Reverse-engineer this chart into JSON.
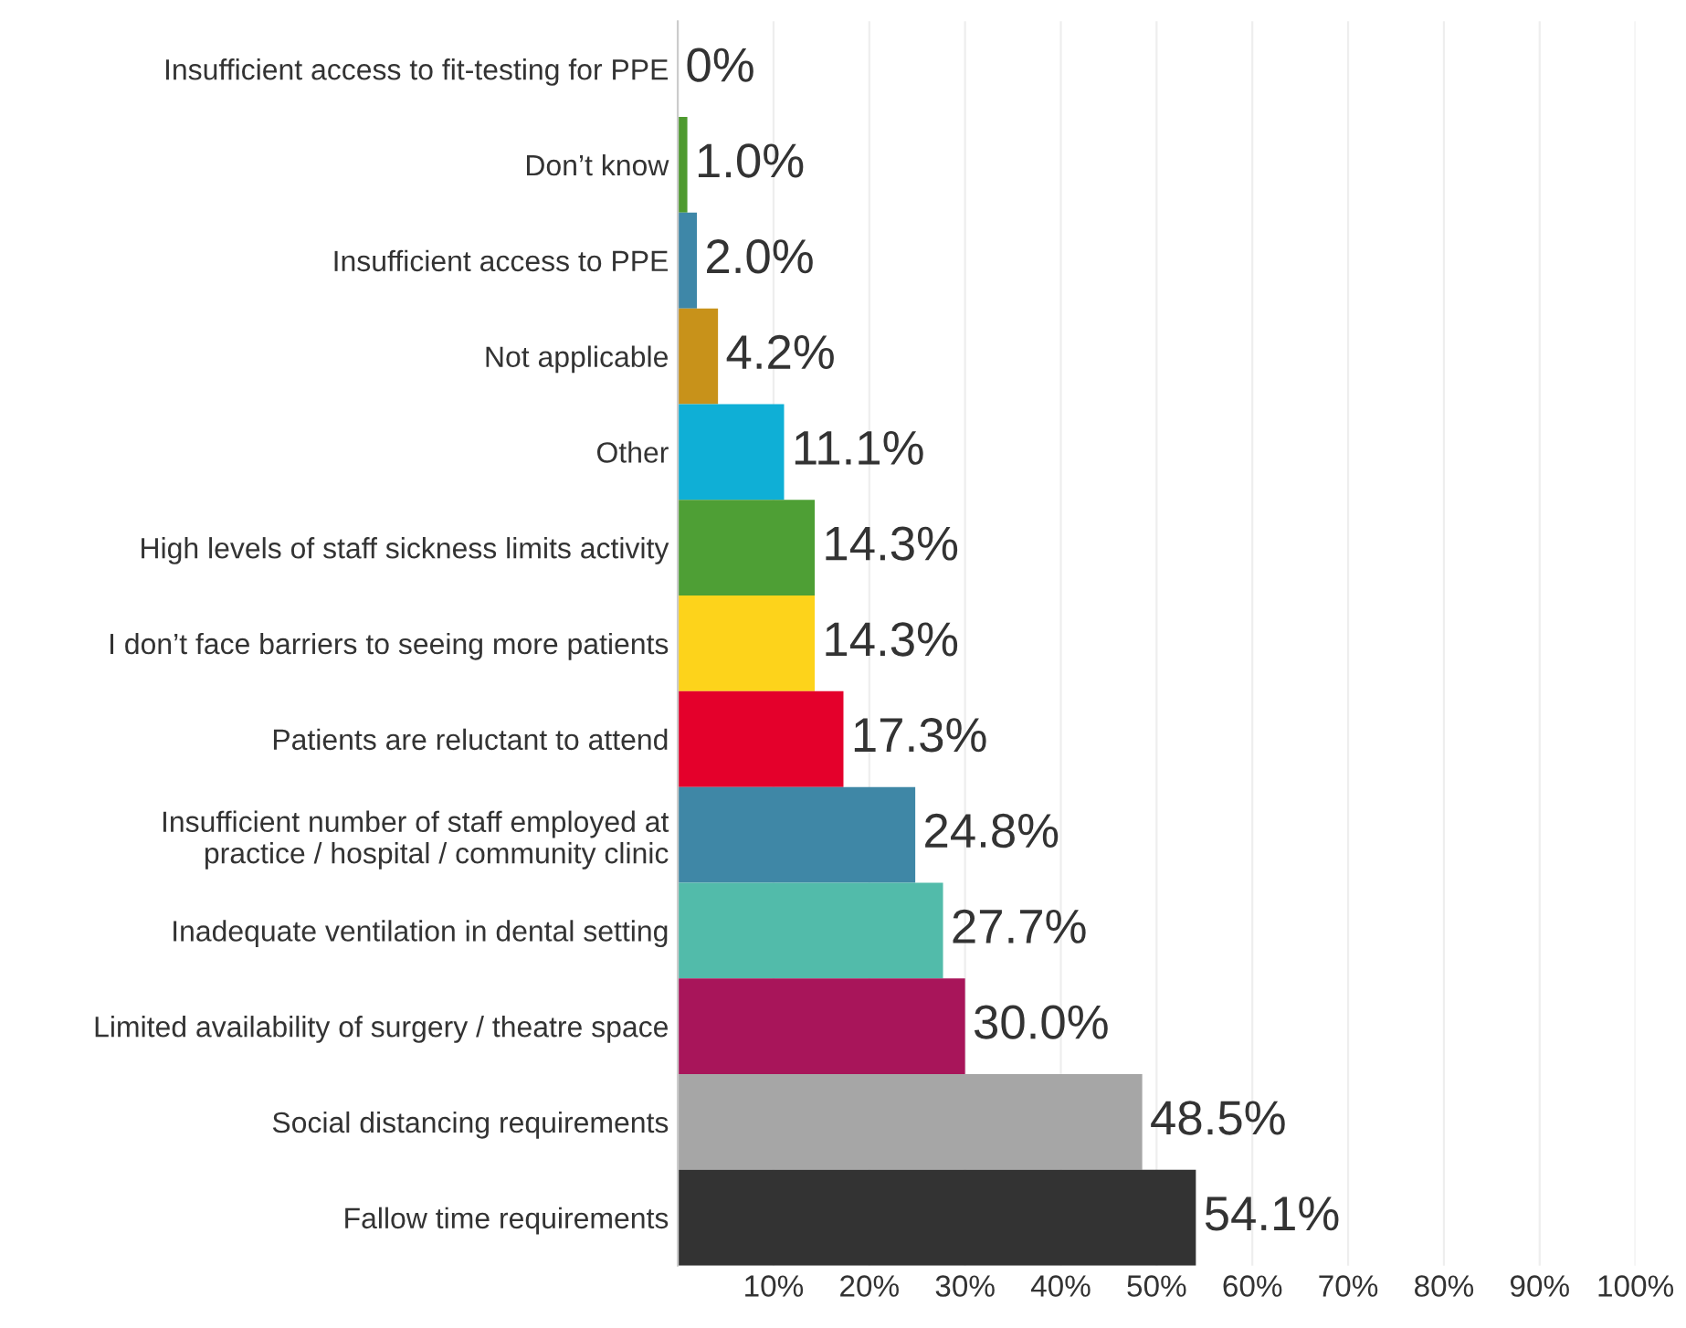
{
  "chart_data": {
    "type": "bar",
    "orientation": "horizontal",
    "categories": [
      "Insufficient access to fit-testing for PPE",
      "Don’t know",
      "Insufficient access to PPE",
      "Not applicable",
      "Other",
      "High levels of staff sickness limits activity",
      "I don’t face barriers to seeing more patients",
      "Patients are reluctant to attend",
      "Insufficient number of staff employed at\npractice / hospital / community clinic",
      "Inadequate ventilation in dental setting",
      "Limited availability of surgery / theatre space",
      "Social distancing requirements",
      "Fallow time requirements"
    ],
    "values": [
      0,
      1.0,
      2.0,
      4.2,
      11.1,
      14.3,
      14.3,
      17.3,
      24.8,
      27.7,
      30.0,
      48.5,
      54.1
    ],
    "value_labels": [
      "0%",
      "1.0%",
      "2.0%",
      "4.2%",
      "11.1%",
      "14.3%",
      "14.3%",
      "17.3%",
      "24.8%",
      "27.7%",
      "30.0%",
      "48.5%",
      "54.1%"
    ],
    "colors": [
      "#4e9a2f",
      "#4e9a2f",
      "#3e87a8",
      "#c8921a",
      "#0fafd6",
      "#4e9f35",
      "#fdd31b",
      "#e4002b",
      "#3f87a6",
      "#52bbaa",
      "#a8155a",
      "#a6a6a6",
      "#333333"
    ],
    "xlim": [
      0,
      100
    ],
    "xticks": [
      {
        "value": 10,
        "label": "10%"
      },
      {
        "value": 20,
        "label": "20%"
      },
      {
        "value": 30,
        "label": "30%"
      },
      {
        "value": 40,
        "label": "40%"
      },
      {
        "value": 50,
        "label": "50%"
      },
      {
        "value": 60,
        "label": "60%"
      },
      {
        "value": 70,
        "label": "70%"
      },
      {
        "value": 80,
        "label": "80%"
      },
      {
        "value": 90,
        "label": "90%"
      },
      {
        "value": 100,
        "label": "100%"
      }
    ],
    "grid": "x"
  }
}
